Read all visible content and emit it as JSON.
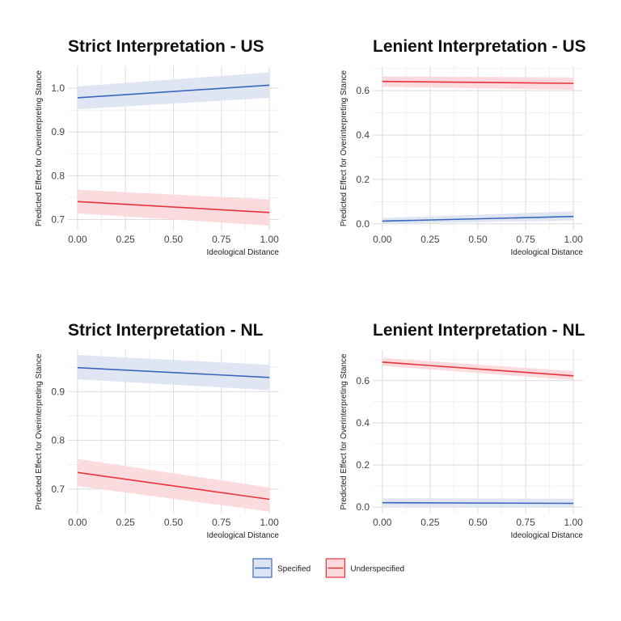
{
  "legend": {
    "position": "bottom",
    "entries": [
      {
        "name": "Specified",
        "line_color": "#3a67be",
        "fill_color": "#dde4f2"
      },
      {
        "name": "Underspecified",
        "line_color": "#e8333c",
        "fill_color": "#fbd9dc"
      }
    ]
  },
  "chart_data": [
    {
      "type": "line",
      "title": "Strict Interpretation - US",
      "xlabel": "Ideological Distance",
      "ylabel": "Predicted Effect for Overinterpreting Stance",
      "xlim": [
        -0.05,
        1.05
      ],
      "ylim": [
        0.675,
        1.05
      ],
      "xticks": [
        0,
        0.25,
        0.5,
        0.75,
        1
      ],
      "xtick_labels": [
        "0.00",
        "0.25",
        "0.50",
        "0.75",
        "1.00"
      ],
      "yticks": [
        0.7,
        0.8,
        0.9,
        1.0
      ],
      "ytick_labels": [
        "0.7",
        "0.8",
        "0.9",
        "1.0"
      ],
      "grid": true,
      "series": [
        {
          "name": "Specified",
          "color": "#3a67be",
          "x": [
            0,
            1
          ],
          "y": [
            0.978,
            1.007
          ],
          "lower": [
            0.952,
            0.978
          ],
          "upper": [
            1.004,
            1.036
          ]
        },
        {
          "name": "Underspecified",
          "color": "#e8333c",
          "x": [
            0,
            1
          ],
          "y": [
            0.741,
            0.716
          ],
          "lower": [
            0.714,
            0.686
          ],
          "upper": [
            0.768,
            0.746
          ]
        }
      ]
    },
    {
      "type": "line",
      "title": "Lenient Interpretation - US",
      "xlabel": "Ideological Distance",
      "ylabel": "Predicted Effect for Overinterpreting Stance",
      "xlim": [
        -0.05,
        1.05
      ],
      "ylim": [
        -0.03,
        0.71
      ],
      "xticks": [
        0,
        0.25,
        0.5,
        0.75,
        1
      ],
      "xtick_labels": [
        "0.00",
        "0.25",
        "0.50",
        "0.75",
        "1.00"
      ],
      "yticks": [
        0,
        0.2,
        0.4,
        0.6
      ],
      "ytick_labels": [
        "0.0",
        "0.2",
        "0.4",
        "0.6"
      ],
      "grid": true,
      "series": [
        {
          "name": "Specified",
          "color": "#3a67be",
          "x": [
            0,
            1
          ],
          "y": [
            0.012,
            0.033
          ],
          "lower": [
            0.0,
            0.015
          ],
          "upper": [
            0.026,
            0.056
          ]
        },
        {
          "name": "Underspecified",
          "color": "#e8333c",
          "x": [
            0,
            1
          ],
          "y": [
            0.642,
            0.633
          ],
          "lower": [
            0.618,
            0.604
          ],
          "upper": [
            0.664,
            0.66
          ]
        }
      ]
    },
    {
      "type": "line",
      "title": "Strict Interpretation - NL",
      "xlabel": "Ideological Distance",
      "ylabel": "Predicted Effect for Overinterpreting Stance",
      "xlim": [
        -0.05,
        1.05
      ],
      "ylim": [
        0.65,
        0.985
      ],
      "xticks": [
        0,
        0.25,
        0.5,
        0.75,
        1
      ],
      "xtick_labels": [
        "0.00",
        "0.25",
        "0.50",
        "0.75",
        "1.00"
      ],
      "yticks": [
        0.7,
        0.8,
        0.9
      ],
      "ytick_labels": [
        "0.7",
        "0.8",
        "0.9"
      ],
      "grid": true,
      "series": [
        {
          "name": "Specified",
          "color": "#3a67be",
          "x": [
            0,
            1
          ],
          "y": [
            0.949,
            0.929
          ],
          "lower": [
            0.925,
            0.903
          ],
          "upper": [
            0.975,
            0.955
          ]
        },
        {
          "name": "Underspecified",
          "color": "#e8333c",
          "x": [
            0,
            1
          ],
          "y": [
            0.734,
            0.679
          ],
          "lower": [
            0.706,
            0.654
          ],
          "upper": [
            0.762,
            0.703
          ]
        }
      ]
    },
    {
      "type": "line",
      "title": "Lenient Interpretation - NL",
      "xlabel": "Ideological Distance",
      "ylabel": "Predicted Effect for Overinterpreting Stance",
      "xlim": [
        -0.05,
        1.05
      ],
      "ylim": [
        -0.03,
        0.745
      ],
      "xticks": [
        0,
        0.25,
        0.5,
        0.75,
        1
      ],
      "xtick_labels": [
        "0.00",
        "0.25",
        "0.50",
        "0.75",
        "1.00"
      ],
      "yticks": [
        0,
        0.2,
        0.4,
        0.6
      ],
      "ytick_labels": [
        "0.0",
        "0.2",
        "0.4",
        "0.6"
      ],
      "grid": true,
      "series": [
        {
          "name": "Specified",
          "color": "#3a67be",
          "x": [
            0,
            1
          ],
          "y": [
            0.021,
            0.018
          ],
          "lower": [
            0.004,
            0.0
          ],
          "upper": [
            0.042,
            0.04
          ]
        },
        {
          "name": "Underspecified",
          "color": "#e8333c",
          "x": [
            0,
            1
          ],
          "y": [
            0.688,
            0.623
          ],
          "lower": [
            0.67,
            0.603
          ],
          "upper": [
            0.708,
            0.645
          ]
        }
      ]
    }
  ]
}
